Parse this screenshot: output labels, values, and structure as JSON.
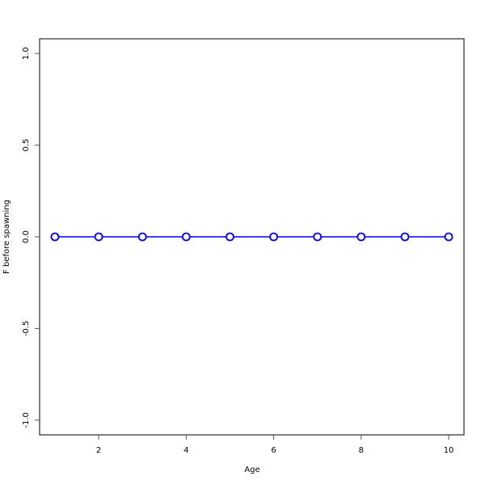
{
  "chart_data": {
    "type": "line",
    "title": "",
    "xlabel": "Age",
    "ylabel": "F before spawning",
    "x": [
      1,
      2,
      3,
      4,
      5,
      6,
      7,
      8,
      9,
      10
    ],
    "series": [
      {
        "values": [
          0,
          0,
          0,
          0,
          0,
          0,
          0,
          0,
          0,
          0
        ],
        "color": "#0000ff",
        "marker": "open-circle"
      }
    ],
    "xlim": [
      0.65,
      10.35
    ],
    "ylim": [
      -1.08,
      1.08
    ],
    "xticks": [
      2,
      4,
      6,
      8,
      10
    ],
    "xtick_labels": [
      "2",
      "4",
      "6",
      "8",
      "10"
    ],
    "yticks": [
      -1.0,
      -0.5,
      0.0,
      0.5,
      1.0
    ],
    "ytick_labels": [
      "-1.0",
      "-0.5",
      "0.0",
      "0.5",
      "1.0"
    ],
    "grid": false,
    "legend": "none"
  }
}
